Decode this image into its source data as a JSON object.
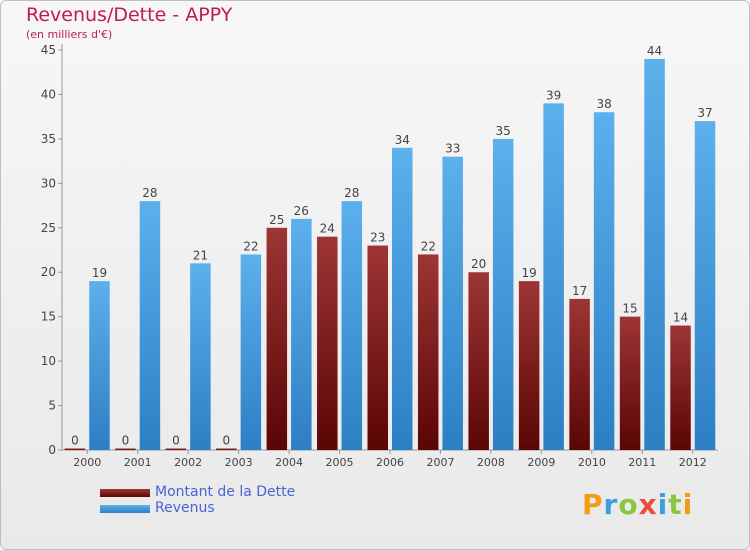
{
  "chart_data": {
    "type": "bar",
    "title": "Revenus/Dette - APPY",
    "subtitle": "(en milliers d'€)",
    "categories": [
      "2000",
      "2001",
      "2002",
      "2003",
      "2004",
      "2005",
      "2006",
      "2007",
      "2008",
      "2009",
      "2010",
      "2011",
      "2012"
    ],
    "series": [
      {
        "name": "Montant de la Dette",
        "color": "#7a1515",
        "values": [
          0,
          0,
          0,
          0,
          25,
          24,
          23,
          22,
          20,
          19,
          17,
          15,
          14
        ]
      },
      {
        "name": "Revenus",
        "color": "#3c9be0",
        "values": [
          19,
          28,
          21,
          22,
          26,
          28,
          34,
          33,
          35,
          39,
          38,
          44,
          37
        ]
      }
    ],
    "ylim": [
      0,
      45
    ],
    "yticks": [
      0,
      5,
      10,
      15,
      20,
      25,
      30,
      35,
      40,
      45
    ],
    "grid": false,
    "legend_position": "bottom-left",
    "data_labels": true
  },
  "logo": {
    "text": "Proxiti"
  }
}
